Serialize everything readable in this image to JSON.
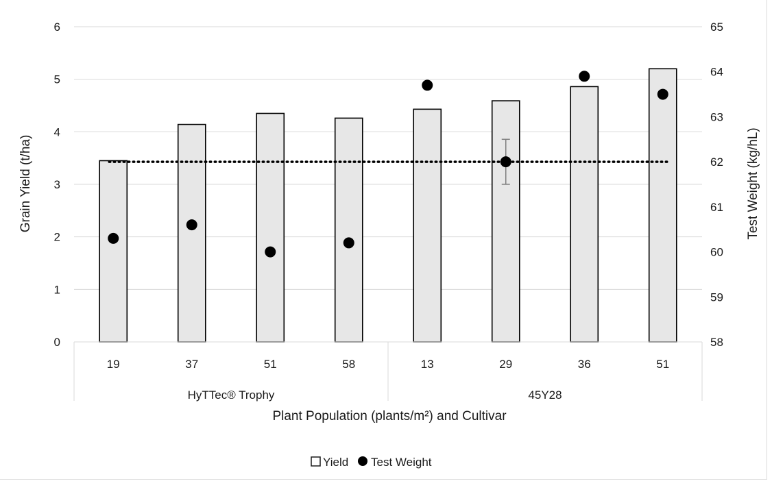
{
  "chart_data": {
    "type": "bar",
    "xlabel": "Plant Population (plants/m²) and Cultivar",
    "ylabel": "Grain Yield (t/ha)",
    "y2label": "Test Weight (kg/hL)",
    "ylim": [
      0,
      6
    ],
    "y2lim": [
      58,
      65
    ],
    "yticks": [
      "0",
      "1",
      "2",
      "3",
      "4",
      "5",
      "6"
    ],
    "y2ticks": [
      "58",
      "59",
      "60",
      "61",
      "62",
      "63",
      "64",
      "65"
    ],
    "categories": [
      "19",
      "37",
      "51",
      "58",
      "13",
      "29",
      "36",
      "51"
    ],
    "groups": [
      {
        "label": "HyTTec® Trophy",
        "span": 4
      },
      {
        "label": "45Y28",
        "span": 4
      }
    ],
    "series": [
      {
        "name": "Yield",
        "type": "bar",
        "axis": "left",
        "color": "#e7e7e7",
        "values": [
          3.45,
          4.14,
          4.35,
          4.26,
          4.43,
          4.59,
          4.86,
          5.2
        ]
      },
      {
        "name": "Test Weight",
        "type": "scatter",
        "axis": "right",
        "color": "#000000",
        "values": [
          60.3,
          60.6,
          60.0,
          60.2,
          63.7,
          62.0,
          63.9,
          63.5
        ],
        "error_bar": {
          "index": 5,
          "plus_minus": 0.5
        }
      }
    ],
    "reference_line": {
      "axis": "right",
      "value": 62.0,
      "style": "dotted"
    },
    "grid": true,
    "legend_position": "bottom"
  }
}
